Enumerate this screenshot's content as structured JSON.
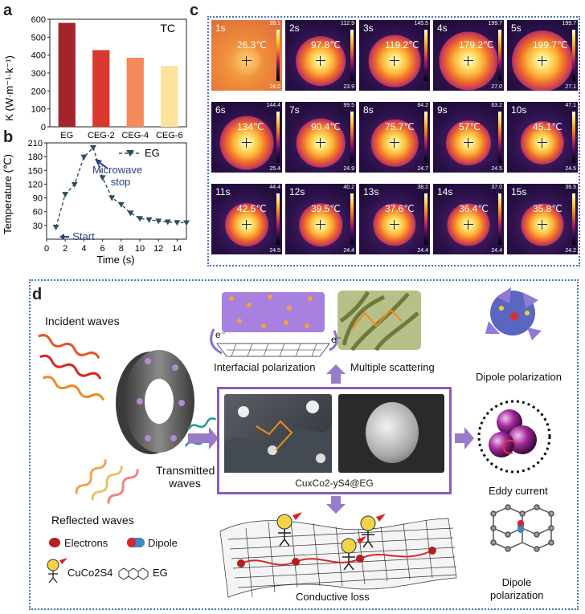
{
  "panel_a": {
    "label": "a",
    "chart_data": {
      "type": "bar",
      "title": "TC",
      "ylabel": "K (W·m⁻¹·k⁻¹)",
      "categories": [
        "EG",
        "CEG-2",
        "CEG-4",
        "CEG-6"
      ],
      "values": [
        580,
        428,
        385,
        340
      ],
      "ylim": [
        0,
        600
      ],
      "yticks": [
        0,
        100,
        200,
        300,
        400,
        500,
        600
      ],
      "colors": [
        "#a3242b",
        "#d8392f",
        "#f58a5c",
        "#fde29a"
      ]
    }
  },
  "panel_b": {
    "label": "b",
    "chart_data": {
      "type": "line",
      "xlabel": "Time (s)",
      "ylabel": "Temperature (℃)",
      "xlim": [
        0,
        15
      ],
      "ylim": [
        0,
        210
      ],
      "xticks": [
        0,
        2,
        4,
        6,
        8,
        10,
        12,
        14
      ],
      "yticks": [
        30,
        60,
        90,
        120,
        150,
        180,
        210
      ],
      "series": [
        {
          "name": "EG",
          "x": [
            1,
            2,
            3,
            4,
            5,
            6,
            7,
            8,
            9,
            10,
            11,
            12,
            13,
            14,
            15
          ],
          "y": [
            26.3,
            97.8,
            119.2,
            179.2,
            199.7,
            134,
            90.4,
            75.7,
            57,
            45.1,
            42.5,
            39.5,
            37.6,
            36.4,
            35.8
          ]
        }
      ],
      "annotations": [
        "Microwave stop",
        "Start"
      ],
      "color": "#2d4f5c"
    }
  },
  "panel_c": {
    "label": "c",
    "tiles": [
      {
        "time": "1s",
        "temp": "26.3℃",
        "smax": "28.1",
        "smin": "24.0"
      },
      {
        "time": "2s",
        "temp": "97.8℃",
        "smax": "112.9",
        "smin": "23.9"
      },
      {
        "time": "3s",
        "temp": "119.2℃",
        "smax": "145.5",
        "smin": ""
      },
      {
        "time": "4s",
        "temp": "179.2℃",
        "smax": "199.7",
        "smin": "27.0"
      },
      {
        "time": "5s",
        "temp": "199.7℃",
        "smax": "199.7",
        "smin": "27.1"
      },
      {
        "time": "6s",
        "temp": "134℃",
        "smax": "144.4",
        "smin": "25.4"
      },
      {
        "time": "7s",
        "temp": "90.4℃",
        "smax": "99.5",
        "smin": "24.9"
      },
      {
        "time": "8s",
        "temp": "75.7℃",
        "smax": "84.2",
        "smin": "24.7"
      },
      {
        "time": "9s",
        "temp": "57℃",
        "smax": "63.2",
        "smin": "24.5"
      },
      {
        "time": "10s",
        "temp": "45.1℃",
        "smax": "47.1",
        "smin": "24.5"
      },
      {
        "time": "11s",
        "temp": "42.5℃",
        "smax": "44.4",
        "smin": "24.5"
      },
      {
        "time": "12s",
        "temp": "39.5℃",
        "smax": "40.2",
        "smin": "24.4"
      },
      {
        "time": "13s",
        "temp": "37.6℃",
        "smax": "38.2",
        "smin": "24.4"
      },
      {
        "time": "14s",
        "temp": "36.4℃",
        "smax": "37.0",
        "smin": "24.4"
      },
      {
        "time": "15s",
        "temp": "35.8℃",
        "smax": "36.5",
        "smin": "24.2"
      }
    ]
  },
  "panel_d": {
    "label": "d",
    "incident": "Incident waves",
    "reflected": "Reflected waves",
    "transmitted": "Transmitted waves",
    "interfacial": "Interfacial polarization",
    "scattering": "Multiple scattering",
    "dipole_pol_top": "Dipole polarization",
    "eddy": "Eddy current",
    "dipole_pol_bottom": "Dipole polarization",
    "conductive": "Conductive loss",
    "composite": "CuxCo2-yS4@EG",
    "electron_symbol": "e⁻",
    "eddy_symbol": "Ie",
    "legend_electrons": "Electrons",
    "legend_dipole": "Dipole",
    "legend_cuco": "CuCo2S4",
    "legend_eg": "EG"
  }
}
